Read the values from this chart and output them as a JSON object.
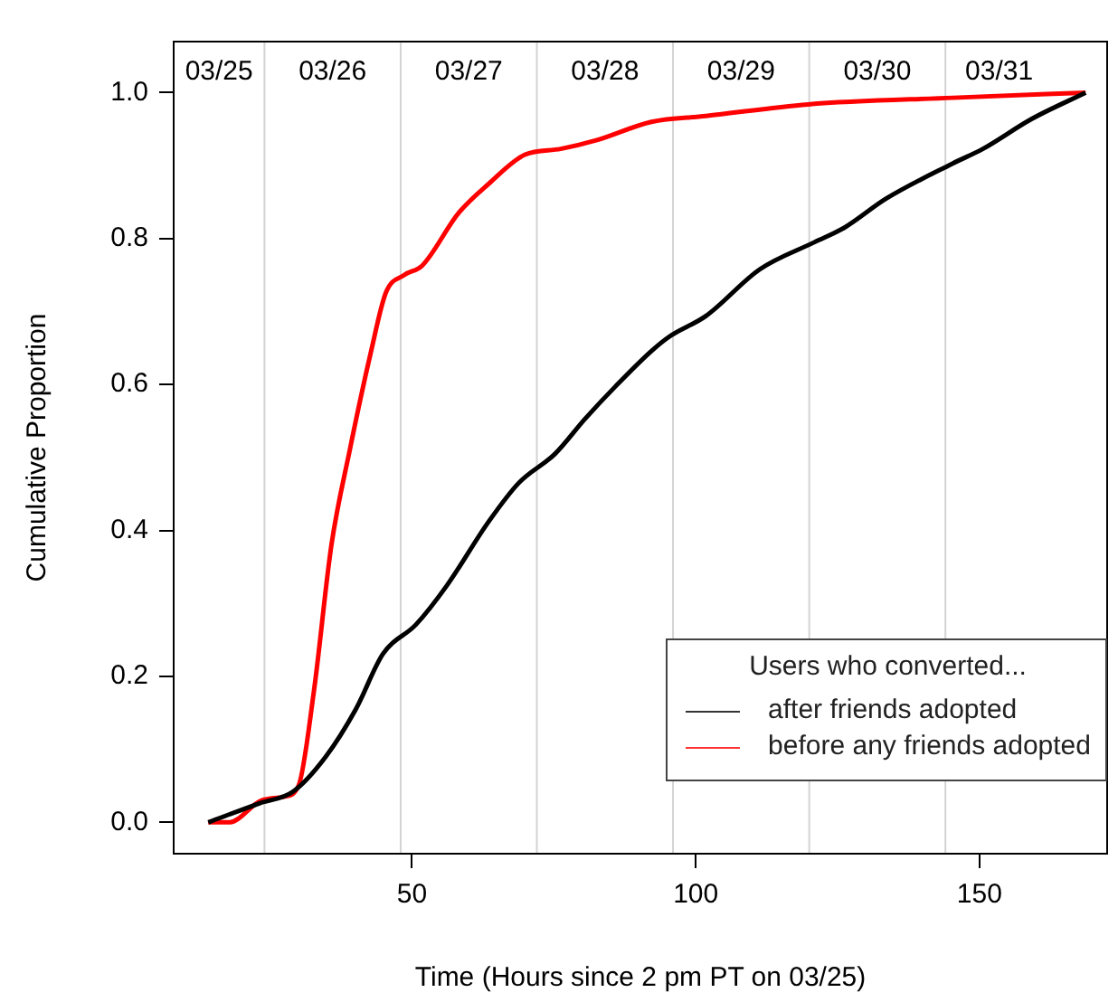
{
  "chart_data": {
    "type": "line",
    "xlabel": "Time (Hours since 2 pm PT on 03/25)",
    "ylabel": "Cumulative Proportion",
    "legend_title": "Users who converted...",
    "legend": "bottom right",
    "grid": false,
    "marker": "none",
    "line_style": "solid",
    "xlim": [
      8,
      172.5
    ],
    "ylim": [
      -0.043,
      1.07
    ],
    "xticks": [
      50,
      100,
      150
    ],
    "yticks": [
      {
        "value": 0,
        "label": "0.0"
      },
      0.2,
      0.4,
      0.6,
      0.8,
      {
        "value": 1,
        "label": "1.0"
      }
    ],
    "series": [
      {
        "name": "after friends adopted",
        "color": "#000000",
        "x": [
          14.1,
          23.1,
          29,
          34.8,
          40.1,
          44.9,
          50.7,
          56.1,
          63.5,
          68.8,
          75.2,
          80.5,
          85.8,
          92.2,
          95.4,
          101.8,
          111.3,
          120.9,
          126.2,
          133.6,
          145.3,
          150.6,
          159.2,
          168.7
        ],
        "values": [
          0,
          0.026,
          0.042,
          0.09,
          0.155,
          0.231,
          0.271,
          0.324,
          0.412,
          0.465,
          0.505,
          0.553,
          0.597,
          0.646,
          0.666,
          0.694,
          0.758,
          0.795,
          0.815,
          0.855,
          0.903,
          0.923,
          0.964,
          1
        ]
      },
      {
        "name": "before any friends adopted",
        "color": "#ff0000",
        "x": [
          14.1,
          17.8,
          23.5,
          27.4,
          30,
          32.7,
          35.8,
          39,
          42.8,
          45.4,
          48.6,
          51.8,
          58.2,
          63.5,
          69.9,
          76.2,
          82.6,
          92.2,
          101.8,
          119.8,
          145.3,
          168.7
        ],
        "values": [
          0,
          0,
          0.03,
          0.035,
          0.05,
          0.179,
          0.38,
          0.509,
          0.646,
          0.726,
          0.75,
          0.763,
          0.835,
          0.875,
          0.915,
          0.923,
          0.935,
          0.96,
          0.968,
          0.984,
          0.993,
          1
        ]
      }
    ],
    "ref_lines": [
      {
        "axis": "x",
        "value": 24,
        "color": "#d3d3d3"
      },
      {
        "axis": "x",
        "value": 48,
        "color": "#d3d3d3"
      },
      {
        "axis": "x",
        "value": 72,
        "color": "#d3d3d3"
      },
      {
        "axis": "x",
        "value": 96,
        "color": "#d3d3d3"
      },
      {
        "axis": "x",
        "value": 120,
        "color": "#d3d3d3"
      },
      {
        "axis": "x",
        "value": 144,
        "color": "#d3d3d3"
      }
    ],
    "annotations": [
      "03/25",
      "03/26",
      "03/27",
      "03/28",
      "03/29",
      "03/30",
      "03/31"
    ]
  }
}
